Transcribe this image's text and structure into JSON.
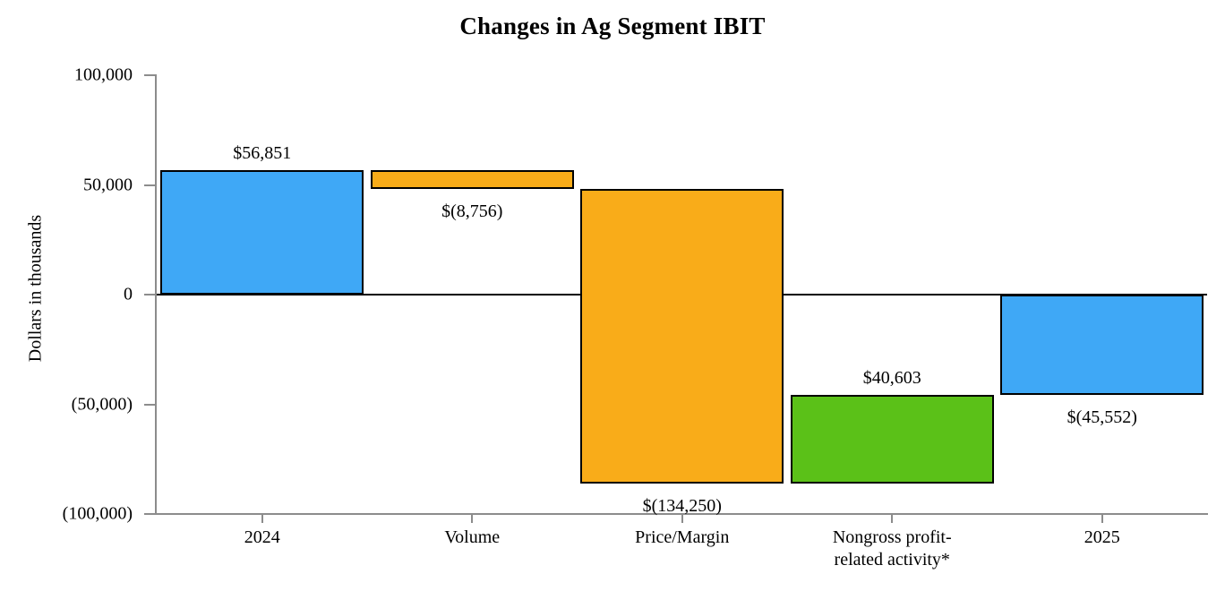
{
  "chart_data": {
    "type": "bar",
    "subtype": "waterfall",
    "title": "Changes in Ag Segment IBIT",
    "ylabel": "Dollars in thousands",
    "xlabel": "",
    "ylim": [
      -100000,
      100000
    ],
    "grid": false,
    "legend": false,
    "yticks": [
      {
        "value": 100000,
        "label": "100,000"
      },
      {
        "value": 50000,
        "label": "50,000"
      },
      {
        "value": 0,
        "label": "0"
      },
      {
        "value": -50000,
        "label": "(50,000)"
      },
      {
        "value": -100000,
        "label": "(100,000)"
      }
    ],
    "bars": [
      {
        "category": "2024",
        "value": 56851,
        "data_label": "$56,851",
        "from": 0,
        "to": 56851,
        "color_key": "total",
        "label_position": "above"
      },
      {
        "category": "Volume",
        "value": -8756,
        "data_label": "$(8,756)",
        "from": 56851,
        "to": 48095,
        "color_key": "decrease",
        "label_position": "below"
      },
      {
        "category": "Price/Margin",
        "value": -134250,
        "data_label": "$(134,250)",
        "from": 48095,
        "to": -86155,
        "color_key": "decrease",
        "label_position": "below"
      },
      {
        "category": "Nongross profit-\nrelated activity*",
        "value": 40603,
        "data_label": "$40,603",
        "from": -86155,
        "to": -45552,
        "color_key": "increase",
        "label_position": "above"
      },
      {
        "category": "2025",
        "value": -45552,
        "data_label": "$(45,552)",
        "from": 0,
        "to": -45552,
        "color_key": "total",
        "label_position": "below"
      }
    ],
    "colors": {
      "total": "#3FA8F6",
      "decrease": "#F9AC19",
      "increase": "#5BC118",
      "axis": "#8C8C8C",
      "bar_border": "#000000",
      "text": "#000000"
    }
  }
}
